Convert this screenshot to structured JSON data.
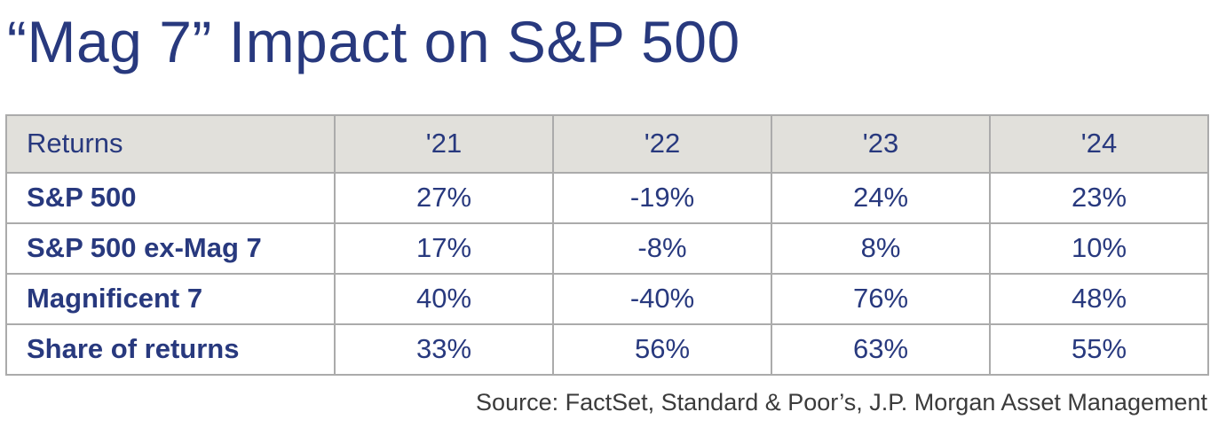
{
  "title": "“Mag 7” Impact on S&P 500",
  "chart_data": {
    "type": "table",
    "title": "“Mag 7” Impact on S&P 500",
    "columns": [
      "Returns",
      "'21",
      "'22",
      "'23",
      "'24"
    ],
    "rows": [
      {
        "label": "S&P 500",
        "values": [
          "27%",
          "-19%",
          "24%",
          "23%"
        ]
      },
      {
        "label": "S&P 500 ex-Mag 7",
        "values": [
          "17%",
          "-8%",
          "8%",
          "10%"
        ]
      },
      {
        "label": "Magnificent 7",
        "values": [
          "40%",
          "-40%",
          "76%",
          "48%"
        ]
      },
      {
        "label": "Share of returns",
        "values": [
          "33%",
          "56%",
          "63%",
          "55%"
        ]
      }
    ],
    "source": "Source: FactSet, Standard & Poor’s, J.P. Morgan Asset Management",
    "layout_hints": {
      "header_row_shaded": true,
      "grid": true,
      "values_centered": true,
      "labels_bold": true
    }
  },
  "colors": {
    "navy": "#28397E",
    "header_bg": "#E1E0DB",
    "border": "#ABABAB",
    "source_text": "#3B3B3B"
  }
}
